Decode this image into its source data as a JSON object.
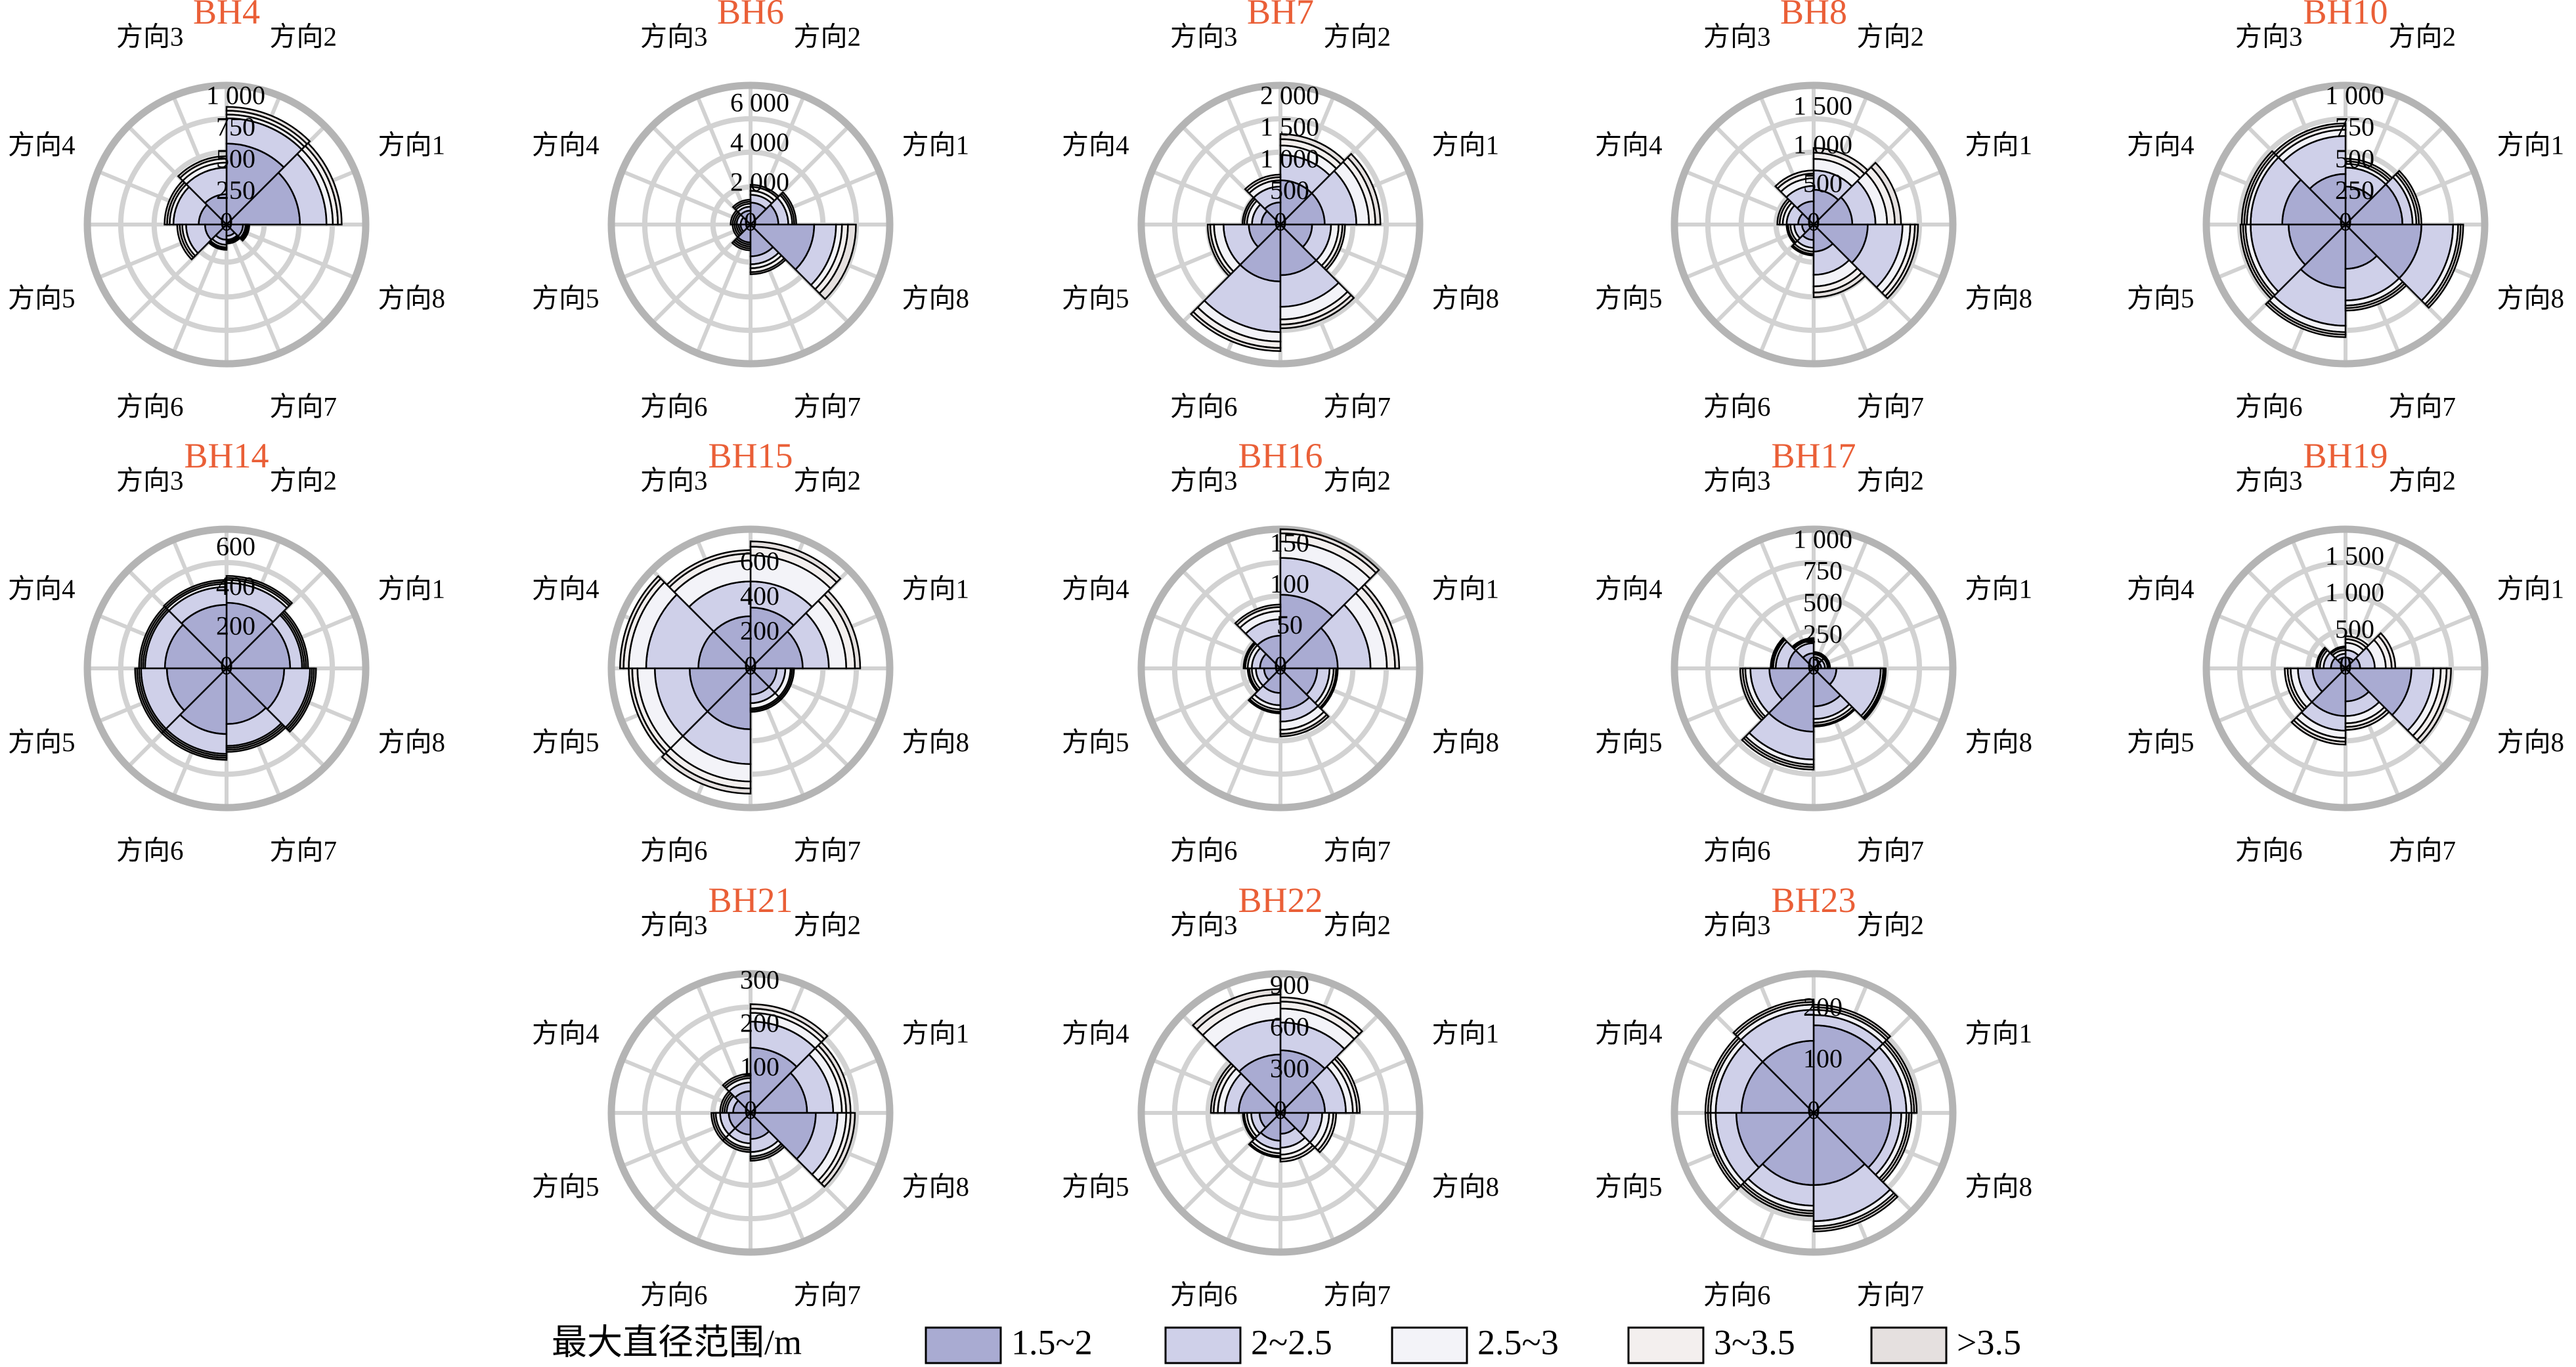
{
  "colors": {
    "title": "#ea5f37",
    "bins": [
      "#a9abd2",
      "#cfd0e9",
      "#f3f3f8",
      "#f3efee",
      "#e5e0df"
    ],
    "grid": "#d2d2d2",
    "outer": "#b4b4b4"
  },
  "legend": {
    "title": "最大直径范围/m",
    "items": [
      "1.5~2",
      "2~2.5",
      "2.5~3",
      "3~3.5",
      ">3.5"
    ]
  },
  "direction_labels": [
    "方向1",
    "方向2",
    "方向3",
    "方向4",
    "方向5",
    "方向6",
    "方向7",
    "方向8"
  ],
  "chart_data": [
    {
      "type": "polar-stacked-bar",
      "title": "BH4",
      "rmax": 1100,
      "ticks": [
        0,
        250,
        500,
        750,
        "1 000"
      ],
      "series": [
        {
          "name": "1.5~2",
          "values": [
            580,
            640,
            240,
            220,
            170,
            120,
            90,
            130
          ]
        },
        {
          "name": "2~2.5",
          "values": [
            210,
            200,
            210,
            200,
            150,
            40,
            30,
            20
          ]
        },
        {
          "name": "2.5~3",
          "values": [
            50,
            30,
            40,
            30,
            30,
            20,
            10,
            10
          ]
        },
        {
          "name": "3~3.5",
          "values": [
            40,
            30,
            30,
            20,
            20,
            10,
            10,
            10
          ]
        },
        {
          "name": ">3.5",
          "values": [
            30,
            30,
            20,
            20,
            20,
            10,
            10,
            10
          ]
        }
      ]
    },
    {
      "type": "polar-stacked-bar",
      "title": "BH6",
      "rmax": 7000,
      "ticks": [
        0,
        "2 000",
        "4 000",
        "6 000"
      ],
      "series": [
        {
          "name": "1.5~2",
          "values": [
            1400,
            1100,
            700,
            500,
            500,
            900,
            1600,
            3200
          ]
        },
        {
          "name": "2~2.5",
          "values": [
            500,
            400,
            200,
            200,
            100,
            100,
            400,
            1100
          ]
        },
        {
          "name": "2.5~3",
          "values": [
            200,
            200,
            150,
            100,
            100,
            100,
            200,
            300
          ]
        },
        {
          "name": "3~3.5",
          "values": [
            100,
            200,
            100,
            100,
            100,
            100,
            200,
            300
          ]
        },
        {
          "name": ">3.5",
          "values": [
            100,
            100,
            100,
            100,
            100,
            100,
            100,
            400
          ]
        }
      ]
    },
    {
      "type": "polar-stacked-bar",
      "title": "BH7",
      "rmax": 2200,
      "ticks": [
        0,
        500,
        "1 000",
        "1 500",
        "2 000"
      ],
      "series": [
        {
          "name": "1.5~2",
          "values": [
            700,
            700,
            350,
            300,
            500,
            900,
            800,
            500
          ]
        },
        {
          "name": "2~2.5",
          "values": [
            500,
            400,
            250,
            150,
            400,
            800,
            500,
            300
          ]
        },
        {
          "name": "2.5~3",
          "values": [
            200,
            150,
            100,
            80,
            150,
            150,
            200,
            120
          ]
        },
        {
          "name": "3~3.5",
          "values": [
            100,
            100,
            50,
            40,
            60,
            100,
            80,
            60
          ]
        },
        {
          "name": ">3.5",
          "values": [
            80,
            80,
            40,
            30,
            40,
            50,
            60,
            40
          ]
        }
      ]
    },
    {
      "type": "polar-stacked-bar",
      "title": "BH8",
      "rmax": 1800,
      "ticks": [
        0,
        500,
        "1 000",
        "1 500"
      ],
      "series": [
        {
          "name": "1.5~2",
          "values": [
            500,
            450,
            300,
            200,
            150,
            200,
            350,
            700
          ]
        },
        {
          "name": "2~2.5",
          "values": [
            300,
            250,
            200,
            150,
            100,
            100,
            300,
            450
          ]
        },
        {
          "name": "2.5~3",
          "values": [
            150,
            150,
            100,
            50,
            50,
            50,
            150,
            100
          ]
        },
        {
          "name": "3~3.5",
          "values": [
            100,
            80,
            60,
            40,
            30,
            30,
            80,
            60
          ]
        },
        {
          "name": ">3.5",
          "values": [
            80,
            60,
            40,
            30,
            20,
            20,
            60,
            40
          ]
        }
      ]
    },
    {
      "type": "polar-stacked-bar",
      "title": "BH10",
      "rmax": 1100,
      "ticks": [
        0,
        250,
        500,
        750,
        "1 000"
      ],
      "series": [
        {
          "name": "1.5~2",
          "values": [
            450,
            300,
            400,
            500,
            450,
            500,
            350,
            600
          ]
        },
        {
          "name": "2~2.5",
          "values": [
            80,
            150,
            300,
            250,
            300,
            300,
            250,
            250
          ]
        },
        {
          "name": "2.5~3",
          "values": [
            30,
            30,
            50,
            30,
            40,
            50,
            40,
            40
          ]
        },
        {
          "name": "3~3.5",
          "values": [
            20,
            20,
            30,
            20,
            20,
            20,
            20,
            20
          ]
        },
        {
          "name": ">3.5",
          "values": [
            20,
            20,
            20,
            20,
            20,
            20,
            20,
            20
          ]
        }
      ]
    },
    {
      "type": "polar-stacked-bar",
      "title": "BH14",
      "rmax": 700,
      "ticks": [
        0,
        200,
        400,
        600
      ],
      "series": [
        {
          "name": "1.5~2",
          "values": [
            320,
            330,
            320,
            310,
            300,
            330,
            280,
            290
          ]
        },
        {
          "name": "2~2.5",
          "values": [
            60,
            100,
            90,
            100,
            130,
            100,
            110,
            130
          ]
        },
        {
          "name": "2.5~3",
          "values": [
            10,
            15,
            15,
            10,
            10,
            10,
            10,
            10
          ]
        },
        {
          "name": "3~3.5",
          "values": [
            10,
            10,
            10,
            10,
            10,
            10,
            10,
            10
          ]
        },
        {
          "name": ">3.5",
          "values": [
            10,
            10,
            10,
            10,
            10,
            10,
            10,
            10
          ]
        }
      ]
    },
    {
      "type": "polar-stacked-bar",
      "title": "BH15",
      "rmax": 800,
      "ticks": [
        0,
        200,
        400,
        600
      ],
      "series": [
        {
          "name": "1.5~2",
          "values": [
            300,
            350,
            300,
            300,
            350,
            350,
            150,
            150
          ]
        },
        {
          "name": "2~2.5",
          "values": [
            150,
            150,
            200,
            300,
            200,
            200,
            50,
            50
          ]
        },
        {
          "name": "2.5~3",
          "values": [
            100,
            150,
            120,
            100,
            100,
            100,
            30,
            30
          ]
        },
        {
          "name": "3~3.5",
          "values": [
            50,
            50,
            40,
            30,
            30,
            40,
            10,
            10
          ]
        },
        {
          "name": ">3.5",
          "values": [
            30,
            30,
            20,
            20,
            20,
            30,
            10,
            10
          ]
        }
      ]
    },
    {
      "type": "polar-stacked-bar",
      "title": "BH16",
      "rmax": 170,
      "ticks": [
        0,
        50,
        100,
        150
      ],
      "series": [
        {
          "name": "1.5~2",
          "values": [
            70,
            90,
            40,
            25,
            20,
            30,
            50,
            45
          ]
        },
        {
          "name": "2~2.5",
          "values": [
            40,
            45,
            20,
            10,
            10,
            15,
            15,
            15
          ]
        },
        {
          "name": "2.5~3",
          "values": [
            20,
            20,
            10,
            5,
            5,
            5,
            10,
            5
          ]
        },
        {
          "name": "3~3.5",
          "values": [
            10,
            10,
            5,
            3,
            3,
            3,
            5,
            3
          ]
        },
        {
          "name": ">3.5",
          "values": [
            5,
            5,
            3,
            2,
            2,
            2,
            3,
            2
          ]
        }
      ]
    },
    {
      "type": "polar-stacked-bar",
      "title": "BH17",
      "rmax": 1100,
      "ticks": [
        0,
        250,
        500,
        750,
        "1 000"
      ],
      "series": [
        {
          "name": "1.5~2",
          "values": [
            60,
            70,
            120,
            200,
            350,
            500,
            300,
            180
          ]
        },
        {
          "name": "2~2.5",
          "values": [
            30,
            20,
            80,
            100,
            150,
            220,
            100,
            350
          ]
        },
        {
          "name": "2.5~3",
          "values": [
            20,
            20,
            20,
            20,
            40,
            40,
            30,
            20
          ]
        },
        {
          "name": "3~3.5",
          "values": [
            10,
            10,
            10,
            10,
            20,
            20,
            20,
            10
          ]
        },
        {
          "name": ">3.5",
          "values": [
            10,
            10,
            10,
            10,
            20,
            20,
            10,
            10
          ]
        }
      ]
    },
    {
      "type": "polar-stacked-bar",
      "title": "BH19",
      "rmax": 1900,
      "ticks": [
        0,
        500,
        "1 000",
        "1 500"
      ],
      "series": [
        {
          "name": "1.5~2",
          "values": [
            200,
            150,
            150,
            200,
            450,
            650,
            450,
            900
          ]
        },
        {
          "name": "2~2.5",
          "values": [
            200,
            100,
            50,
            100,
            200,
            200,
            200,
            300
          ]
        },
        {
          "name": "2.5~3",
          "values": [
            150,
            100,
            50,
            50,
            100,
            100,
            100,
            100
          ]
        },
        {
          "name": "3~3.5",
          "values": [
            80,
            50,
            30,
            30,
            40,
            50,
            50,
            80
          ]
        },
        {
          "name": ">3.5",
          "values": [
            50,
            40,
            20,
            20,
            40,
            40,
            40,
            60
          ]
        }
      ]
    },
    {
      "type": "polar-stacked-bar",
      "title": "BH21",
      "rmax": 320,
      "ticks": [
        0,
        100,
        200,
        300
      ],
      "series": [
        {
          "name": "1.5~2",
          "values": [
            130,
            150,
            50,
            40,
            50,
            50,
            60,
            150
          ]
        },
        {
          "name": "2~2.5",
          "values": [
            60,
            60,
            20,
            15,
            20,
            20,
            30,
            50
          ]
        },
        {
          "name": "2.5~3",
          "values": [
            20,
            20,
            10,
            5,
            10,
            10,
            10,
            20
          ]
        },
        {
          "name": "3~3.5",
          "values": [
            10,
            10,
            5,
            5,
            5,
            5,
            5,
            10
          ]
        },
        {
          "name": ">3.5",
          "values": [
            10,
            10,
            5,
            5,
            5,
            5,
            5,
            10
          ]
        }
      ]
    },
    {
      "type": "polar-stacked-bar",
      "title": "BH22",
      "rmax": 1000,
      "ticks": [
        0,
        300,
        600,
        900
      ],
      "series": [
        {
          "name": "1.5~2",
          "values": [
            320,
            450,
            420,
            300,
            150,
            200,
            150,
            200
          ]
        },
        {
          "name": "2~2.5",
          "values": [
            150,
            200,
            250,
            100,
            60,
            60,
            100,
            100
          ]
        },
        {
          "name": "2.5~3",
          "values": [
            50,
            100,
            120,
            50,
            30,
            30,
            50,
            50
          ]
        },
        {
          "name": "3~3.5",
          "values": [
            30,
            50,
            60,
            30,
            20,
            20,
            30,
            30
          ]
        },
        {
          "name": ">3.5",
          "values": [
            20,
            30,
            40,
            20,
            10,
            10,
            20,
            20
          ]
        }
      ]
    },
    {
      "type": "polar-stacked-bar",
      "title": "BH23",
      "rmax": 270,
      "ticks": [
        0,
        100,
        200
      ],
      "series": [
        {
          "name": "1.5~2",
          "values": [
            150,
            170,
            140,
            140,
            150,
            140,
            140,
            150
          ]
        },
        {
          "name": "2~2.5",
          "values": [
            30,
            20,
            60,
            50,
            40,
            40,
            70,
            20
          ]
        },
        {
          "name": "2.5~3",
          "values": [
            10,
            10,
            10,
            10,
            10,
            10,
            10,
            10
          ]
        },
        {
          "name": "3~3.5",
          "values": [
            5,
            5,
            5,
            5,
            5,
            5,
            5,
            5
          ]
        },
        {
          "name": ">3.5",
          "values": [
            5,
            5,
            5,
            5,
            5,
            5,
            5,
            5
          ]
        }
      ]
    }
  ]
}
